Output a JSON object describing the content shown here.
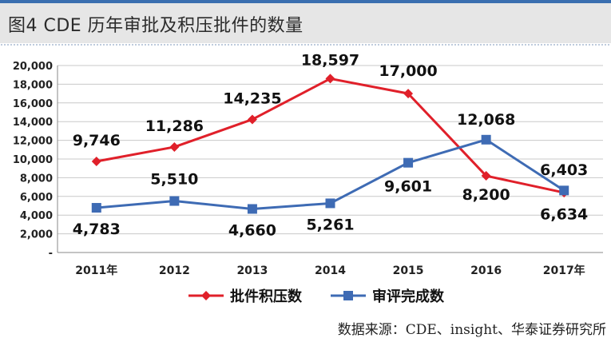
{
  "header": {
    "title": "图4  CDE 历年审批及积压批件的数量"
  },
  "source": "数据来源：CDE、insight、华泰证券研究所",
  "colors": {
    "backlog": "#e0202a",
    "completed": "#3e6bb4",
    "title_band": "#e6e6e6",
    "rule": "#3a6fb0"
  },
  "chart_data": {
    "type": "line",
    "title": "图4  CDE 历年审批及积压批件的数量",
    "categories": [
      "2011年",
      "2012",
      "2013",
      "2014",
      "2015",
      "2016",
      "2017年"
    ],
    "ylim": [
      0,
      20000
    ],
    "yticks": [
      0,
      2000,
      4000,
      6000,
      8000,
      10000,
      12000,
      14000,
      16000,
      18000,
      20000
    ],
    "ytick_labels": [
      "-",
      "2,000",
      "4,000",
      "6,000",
      "8,000",
      "10,000",
      "12,000",
      "14,000",
      "16,000",
      "18,000",
      "20,000"
    ],
    "grid": true,
    "legend_position": "bottom",
    "series": [
      {
        "name": "批件积压数",
        "marker": "diamond",
        "color": "#e0202a",
        "values": [
          9746,
          11286,
          14235,
          18597,
          17000,
          8200,
          6403
        ],
        "labels": [
          "9,746",
          "11,286",
          "14,235",
          "18,597",
          "17,000",
          "8,200",
          "6,403"
        ]
      },
      {
        "name": "审评完成数",
        "marker": "square",
        "color": "#3e6bb4",
        "values": [
          4783,
          5510,
          4660,
          5261,
          9601,
          12068,
          6634
        ],
        "labels": [
          "4,783",
          "5,510",
          "4,660",
          "5,261",
          "9,601",
          "12,068",
          "6,634"
        ]
      }
    ]
  }
}
